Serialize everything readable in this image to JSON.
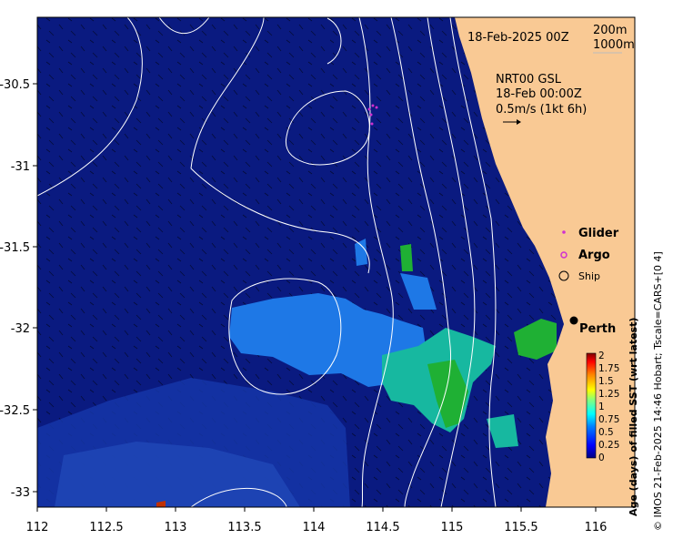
{
  "map": {
    "timestamp_title": "18-Feb-2025 00Z",
    "depth_legend": {
      "contour_1": "200m",
      "contour_2": "1000m"
    },
    "analysis": {
      "line1": "NRT00 GSL",
      "line2": "18-Feb 00:00Z",
      "line3": "0.5m/s (1kt 6h)"
    },
    "legend": {
      "glider": "Glider",
      "argo": "Argo",
      "ship": "Ship"
    },
    "place": {
      "city": "Perth"
    },
    "credit": "© IMOS 21-Feb-2025 14:46 Hobart; Tscale=CARS+[0 4]",
    "colors": {
      "ocean": "#0a1a80",
      "land": "#f9c994",
      "contour": "#ffffff",
      "glider": "#d030d0",
      "argo": "#d030d0"
    },
    "icons": {
      "ship": "circle-outline",
      "argo": "circle-outline-small",
      "glider": "dot"
    }
  },
  "axes": {
    "x_ticks": [
      "112",
      "112.5",
      "113",
      "113.5",
      "114",
      "114.5",
      "115",
      "115.5",
      "116"
    ],
    "y_ticks": [
      "-30.5",
      "-31",
      "-31.5",
      "-32",
      "-32.5",
      "-33"
    ]
  },
  "colorbar": {
    "label": "Age (days) of filled SST (wrt latest)",
    "ticks": [
      "2",
      "1.75",
      "1.5",
      "1.25",
      "1",
      "0.75",
      "0.5",
      "0.25",
      "0"
    ],
    "range": [
      0,
      2
    ],
    "colormap": [
      "#000080",
      "#0000ff",
      "#0080ff",
      "#00ffff",
      "#80ff80",
      "#ffff00",
      "#ff8000",
      "#ff0000",
      "#800000"
    ]
  }
}
